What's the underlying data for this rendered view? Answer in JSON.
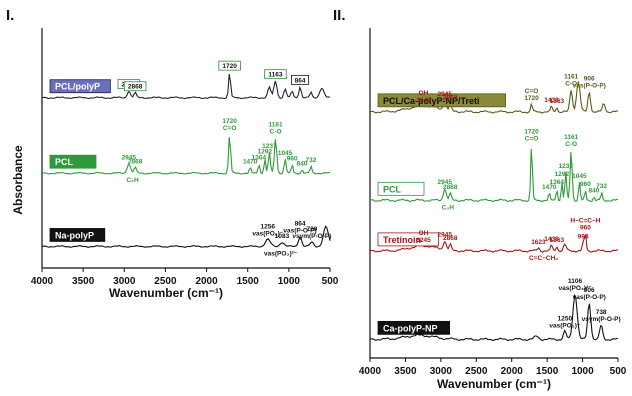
{
  "chart_data": [
    {
      "panel": "I.",
      "type": "line",
      "xlabel": "Wavenumber (cm⁻¹)",
      "ylabel": "Absorbance",
      "xlim": [
        4000,
        500
      ],
      "x_ticks": [
        "4000",
        "3500",
        "3000",
        "2500",
        "2000",
        "1500",
        "1000",
        "500"
      ],
      "legend": "inline boxed labels at left of each trace",
      "series": [
        {
          "name": "PCL/polyP",
          "color": "#222233",
          "label_bg": "#6a6fbf",
          "label_fg": "#ffffff",
          "baseline_frac": 0.26,
          "peaks": [
            {
              "x": 2945,
              "h": 0.1,
              "w": 18
            },
            {
              "x": 2868,
              "h": 0.07,
              "w": 15
            },
            {
              "x": 1720,
              "h": 0.36,
              "w": 12
            },
            {
              "x": 1237,
              "h": 0.15,
              "w": 18
            },
            {
              "x": 1163,
              "h": 0.24,
              "w": 18
            },
            {
              "x": 1045,
              "h": 0.12,
              "w": 16
            },
            {
              "x": 960,
              "h": 0.09,
              "w": 14
            },
            {
              "x": 864,
              "h": 0.16,
              "w": 14
            },
            {
              "x": 732,
              "h": 0.08,
              "w": 12
            },
            {
              "x": 600,
              "h": 0.14,
              "w": 25
            }
          ],
          "annotations": [
            {
              "x": 2945,
              "text": "2945",
              "box": "#2e8b3a"
            },
            {
              "x": 2868,
              "text": "2868",
              "box": "#2e8b3a"
            },
            {
              "x": 1720,
              "text": "1720",
              "box": "#2e8b3a"
            },
            {
              "x": 1163,
              "text": "1163",
              "box": "#2e8b3a"
            },
            {
              "x": 864,
              "text": "864",
              "box": "#111111"
            }
          ]
        },
        {
          "name": "PCL",
          "color": "#2e9a3a",
          "label_bg": "#2e9a3a",
          "label_fg": "#ffffff",
          "baseline_frac": 0.6,
          "peaks": [
            {
              "x": 2945,
              "h": 0.14,
              "w": 20
            },
            {
              "x": 2868,
              "h": 0.08,
              "w": 15
            },
            {
              "x": 1720,
              "h": 0.55,
              "w": 12
            },
            {
              "x": 1470,
              "h": 0.08,
              "w": 10
            },
            {
              "x": 1364,
              "h": 0.14,
              "w": 10
            },
            {
              "x": 1292,
              "h": 0.22,
              "w": 10
            },
            {
              "x": 1237,
              "h": 0.3,
              "w": 12
            },
            {
              "x": 1161,
              "h": 0.5,
              "w": 14
            },
            {
              "x": 1045,
              "h": 0.2,
              "w": 12
            },
            {
              "x": 960,
              "h": 0.12,
              "w": 10
            },
            {
              "x": 840,
              "h": 0.05,
              "w": 10
            },
            {
              "x": 732,
              "h": 0.1,
              "w": 10
            }
          ],
          "annotations": [
            {
              "x": 2945,
              "text": "2945"
            },
            {
              "x": 2868,
              "text": "2868"
            },
            {
              "x": 2900,
              "text": "C₂H",
              "below": true
            },
            {
              "x": 1720,
              "text": "C=O"
            },
            {
              "x": 1720,
              "text": "1720"
            },
            {
              "x": 1161,
              "text": "C-O"
            },
            {
              "x": 1161,
              "text": "1161"
            },
            {
              "x": 1237,
              "text": "1237"
            },
            {
              "x": 1292,
              "text": "1292"
            },
            {
              "x": 1364,
              "text": "1364"
            },
            {
              "x": 1470,
              "text": "1470"
            },
            {
              "x": 1045,
              "text": "1045"
            },
            {
              "x": 960,
              "text": "960"
            },
            {
              "x": 840,
              "text": "840"
            },
            {
              "x": 732,
              "text": "732"
            }
          ]
        },
        {
          "name": "Na-polyP",
          "color": "#111111",
          "label_bg": "#111111",
          "label_fg": "#ffffff",
          "baseline_frac": 0.93,
          "peaks": [
            {
              "x": 1256,
              "h": 0.1,
              "w": 30
            },
            {
              "x": 1083,
              "h": 0.06,
              "w": 25
            },
            {
              "x": 864,
              "h": 0.14,
              "w": 20
            },
            {
              "x": 720,
              "h": 0.06,
              "w": 20
            },
            {
              "x": 550,
              "h": 0.28,
              "w": 30
            }
          ],
          "annotations": [
            {
              "x": 1256,
              "text": "νas(PO₂)⁻"
            },
            {
              "x": 1256,
              "text": "1256"
            },
            {
              "x": 1083,
              "text": "1083"
            },
            {
              "x": 1100,
              "text": "νas(PO₃)²⁻",
              "below": true
            },
            {
              "x": 864,
              "text": "νas(P-O-P)"
            },
            {
              "x": 864,
              "text": "864"
            },
            {
              "x": 720,
              "text": "νsym(P-O-P)"
            },
            {
              "x": 720,
              "text": "720"
            }
          ]
        }
      ]
    },
    {
      "panel": "II.",
      "type": "line",
      "xlabel": "Wavenumber (cm⁻¹)",
      "ylabel": "",
      "xlim": [
        4000,
        500
      ],
      "x_ticks": [
        "4000",
        "3500",
        "3000",
        "2500",
        "2000",
        "1500",
        "1000",
        "500"
      ],
      "legend": "inline boxed labels at left of each trace",
      "series": [
        {
          "name": "PCL/Ca-polyP-NP/Treti",
          "color": "#5a5a1a",
          "label_bg": "#8a8a3a",
          "label_fg": "#111111",
          "baseline_frac": 0.24,
          "peaks": [
            {
              "x": 3245,
              "h": 0.06,
              "w": 200
            },
            {
              "x": 2945,
              "h": 0.1,
              "w": 20
            },
            {
              "x": 2868,
              "h": 0.07,
              "w": 15
            },
            {
              "x": 1720,
              "h": 0.08,
              "w": 12
            },
            {
              "x": 1438,
              "h": 0.06,
              "w": 12
            },
            {
              "x": 1363,
              "h": 0.05,
              "w": 12
            },
            {
              "x": 1161,
              "h": 0.22,
              "w": 18
            },
            {
              "x": 1060,
              "h": 0.3,
              "w": 25
            },
            {
              "x": 906,
              "h": 0.2,
              "w": 18
            },
            {
              "x": 700,
              "h": 0.08,
              "w": 20
            }
          ],
          "annotations": [
            {
              "x": 3245,
              "text": "3245",
              "color": "#a01818"
            },
            {
              "x": 3245,
              "text": "OH",
              "color": "#a01818"
            },
            {
              "x": 2945,
              "text": "2945",
              "color": "#a01818"
            },
            {
              "x": 2868,
              "text": "2868",
              "color": "#a01818"
            },
            {
              "x": 1720,
              "text": "1720"
            },
            {
              "x": 1720,
              "text": "C=O"
            },
            {
              "x": 1438,
              "text": "1438",
              "color": "#a01818"
            },
            {
              "x": 1363,
              "text": "1363",
              "color": "#a01818"
            },
            {
              "x": 1161,
              "text": "C-O"
            },
            {
              "x": 1161,
              "text": "1161"
            },
            {
              "x": 906,
              "text": "νas(P-O-P)"
            },
            {
              "x": 906,
              "text": "906"
            }
          ]
        },
        {
          "name": "PCL",
          "color": "#2e9a3a",
          "label_bg": "#ffffff",
          "label_fg": "#2e9a3a",
          "baseline_frac": 0.52,
          "peaks": [
            {
              "x": 2945,
              "h": 0.12,
              "w": 20
            },
            {
              "x": 2868,
              "h": 0.07,
              "w": 15
            },
            {
              "x": 1720,
              "h": 0.55,
              "w": 12
            },
            {
              "x": 1470,
              "h": 0.07,
              "w": 10
            },
            {
              "x": 1364,
              "h": 0.12,
              "w": 10
            },
            {
              "x": 1292,
              "h": 0.2,
              "w": 10
            },
            {
              "x": 1237,
              "h": 0.28,
              "w": 12
            },
            {
              "x": 1161,
              "h": 0.5,
              "w": 14
            },
            {
              "x": 1045,
              "h": 0.18,
              "w": 12
            },
            {
              "x": 960,
              "h": 0.1,
              "w": 10
            },
            {
              "x": 840,
              "h": 0.04,
              "w": 10
            },
            {
              "x": 732,
              "h": 0.08,
              "w": 10
            }
          ],
          "annotations": [
            {
              "x": 2945,
              "text": "2945"
            },
            {
              "x": 2868,
              "text": "2868"
            },
            {
              "x": 2900,
              "text": "C₂H",
              "below": true
            },
            {
              "x": 1720,
              "text": "C=O"
            },
            {
              "x": 1720,
              "text": "1720"
            },
            {
              "x": 1161,
              "text": "C-O"
            },
            {
              "x": 1161,
              "text": "1161"
            },
            {
              "x": 1237,
              "text": "1237"
            },
            {
              "x": 1292,
              "text": "1292"
            },
            {
              "x": 1364,
              "text": "1364"
            },
            {
              "x": 1470,
              "text": "1470"
            },
            {
              "x": 1045,
              "text": "1045"
            },
            {
              "x": 960,
              "text": "960"
            },
            {
              "x": 840,
              "text": "840"
            },
            {
              "x": 732,
              "text": "732"
            }
          ]
        },
        {
          "name": "Tretinoin",
          "color": "#a01818",
          "label_bg": "#ffffff",
          "label_fg": "#a01818",
          "baseline_frac": 0.68,
          "peaks": [
            {
              "x": 3245,
              "h": 0.05,
              "w": 180
            },
            {
              "x": 2945,
              "h": 0.09,
              "w": 20
            },
            {
              "x": 2868,
              "h": 0.06,
              "w": 15
            },
            {
              "x": 1623,
              "h": 0.03,
              "w": 15
            },
            {
              "x": 1438,
              "h": 0.06,
              "w": 12
            },
            {
              "x": 1363,
              "h": 0.05,
              "w": 12
            },
            {
              "x": 1250,
              "h": 0.06,
              "w": 20
            },
            {
              "x": 993,
              "h": 0.08,
              "w": 12
            },
            {
              "x": 960,
              "h": 0.17,
              "w": 12
            }
          ],
          "annotations": [
            {
              "x": 3245,
              "text": "3245"
            },
            {
              "x": 3245,
              "text": "OH"
            },
            {
              "x": 2945,
              "text": "2945"
            },
            {
              "x": 2868,
              "text": "2868"
            },
            {
              "x": 1623,
              "text": "1623"
            },
            {
              "x": 1550,
              "text": "C=C−CH₂",
              "below": true
            },
            {
              "x": 1438,
              "text": "1438"
            },
            {
              "x": 1363,
              "text": "1363"
            },
            {
              "x": 993,
              "text": "993"
            },
            {
              "x": 960,
              "text": "960"
            },
            {
              "x": 960,
              "text": "H−C=C−H"
            }
          ]
        },
        {
          "name": "Ca-polyP-NP",
          "color": "#111111",
          "label_bg": "#111111",
          "label_fg": "#ffffff",
          "baseline_frac": 0.96,
          "peaks": [
            {
              "x": 3300,
              "h": 0.04,
              "w": 200
            },
            {
              "x": 1650,
              "h": 0.03,
              "w": 30
            },
            {
              "x": 1250,
              "h": 0.08,
              "w": 20
            },
            {
              "x": 1106,
              "h": 0.45,
              "w": 30
            },
            {
              "x": 906,
              "h": 0.36,
              "w": 22
            },
            {
              "x": 738,
              "h": 0.14,
              "w": 20
            }
          ],
          "annotations": [
            {
              "x": 1250,
              "text": "νas(PO₂)⁻"
            },
            {
              "x": 1250,
              "text": "1250"
            },
            {
              "x": 1106,
              "text": "νas(PO₃)²⁻"
            },
            {
              "x": 1106,
              "text": "1106"
            },
            {
              "x": 906,
              "text": "νas(P-O-P)"
            },
            {
              "x": 906,
              "text": "906"
            },
            {
              "x": 738,
              "text": "νsym(P-O-P)"
            },
            {
              "x": 738,
              "text": "738"
            }
          ]
        }
      ]
    }
  ]
}
